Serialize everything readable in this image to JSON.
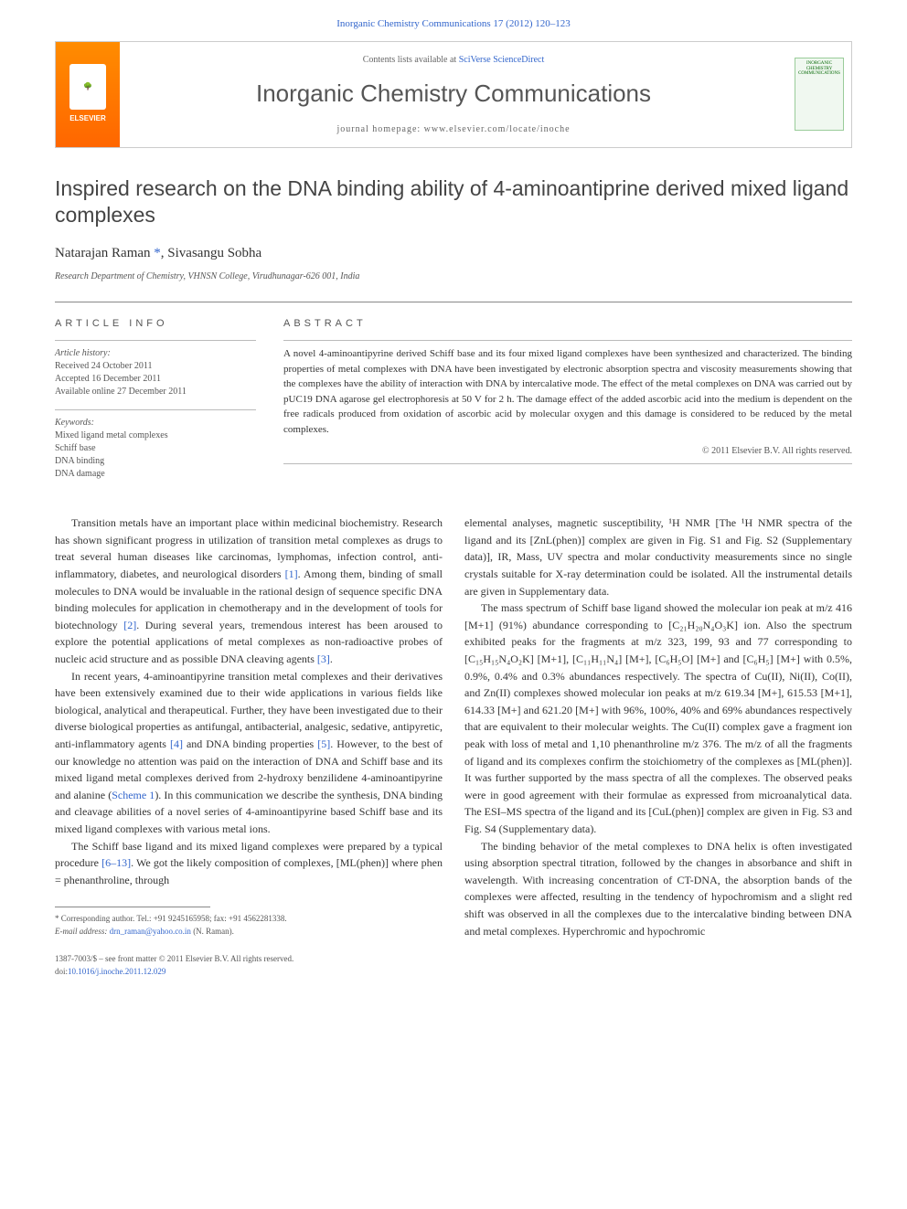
{
  "header": {
    "top_citation": "Inorganic Chemistry Communications 17 (2012) 120–123",
    "contents_prefix": "Contents lists available at ",
    "contents_link": "SciVerse ScienceDirect",
    "journal_title": "Inorganic Chemistry Communications",
    "homepage_label": "journal homepage: www.elsevier.com/locate/inoche",
    "publisher": "ELSEVIER",
    "cover_text": "INORGANIC CHEMISTRY COMMUNICATIONS"
  },
  "article": {
    "title": "Inspired research on the DNA binding ability of 4-aminoantiprine derived mixed ligand complexes",
    "authors_html": "Natarajan Raman *, Sivasangu Sobha",
    "author1": "Natarajan Raman",
    "corr_mark": "*",
    "author2": "Sivasangu Sobha",
    "affiliation": "Research Department of Chemistry, VHNSN College, Virudhunagar-626 001, India"
  },
  "info": {
    "heading": "ARTICLE INFO",
    "history_label": "Article history:",
    "received": "Received 24 October 2011",
    "accepted": "Accepted 16 December 2011",
    "online": "Available online 27 December 2011",
    "keywords_label": "Keywords:",
    "kw1": "Mixed ligand metal complexes",
    "kw2": "Schiff base",
    "kw3": "DNA binding",
    "kw4": "DNA damage"
  },
  "abstract": {
    "heading": "ABSTRACT",
    "text": "A novel 4-aminoantipyrine derived Schiff base and its four mixed ligand complexes have been synthesized and characterized. The binding properties of metal complexes with DNA have been investigated by electronic absorption spectra and viscosity measurements showing that the complexes have the ability of interaction with DNA by intercalative mode. The effect of the metal complexes on DNA was carried out by pUC19 DNA agarose gel electrophoresis at 50 V for 2 h. The damage effect of the added ascorbic acid into the medium is dependent on the free radicals produced from oxidation of ascorbic acid by molecular oxygen and this damage is considered to be reduced by the metal complexes.",
    "copyright": "© 2011 Elsevier B.V. All rights reserved."
  },
  "body": {
    "left": {
      "p1a": "Transition metals have an important place within medicinal biochemistry. Research has shown significant progress in utilization of transition metal complexes as drugs to treat several human diseases like carcinomas, lymphomas, infection control, anti-inflammatory, diabetes, and neurological disorders ",
      "ref1": "[1]",
      "p1b": ". Among them, binding of small molecules to DNA would be invaluable in the rational design of sequence specific DNA binding molecules for application in chemotherapy and in the development of tools for biotechnology ",
      "ref2": "[2]",
      "p1c": ". During several years, tremendous interest has been aroused to explore the potential applications of metal complexes as non-radioactive probes of nucleic acid structure and as possible DNA cleaving agents ",
      "ref3": "[3]",
      "p1d": ".",
      "p2a": "In recent years, 4-aminoantipyrine transition metal complexes and their derivatives have been extensively examined due to their wide applications in various fields like biological, analytical and therapeutical. Further, they have been investigated due to their diverse biological properties as antifungal, antibacterial, analgesic, sedative, antipyretic, anti-inflammatory agents ",
      "ref4": "[4]",
      "p2b": " and DNA binding properties ",
      "ref5": "[5]",
      "p2c": ". However, to the best of our knowledge no attention was paid on the interaction of DNA and Schiff base and its mixed ligand metal complexes derived from 2-hydroxy benzilidene 4-aminoantipyrine and alanine (",
      "scheme": "Scheme 1",
      "p2d": "). In this communication we describe the synthesis, DNA binding and cleavage abilities of a novel series of 4-aminoantipyrine based Schiff base and its mixed ligand complexes with various metal ions.",
      "p3a": "The Schiff base ligand and its mixed ligand complexes were prepared by a typical procedure ",
      "ref6": "[6–13]",
      "p3b": ". We got the likely composition of complexes, [ML(phen)] where phen = phenanthroline, through"
    },
    "right": {
      "p1": "elemental analyses, magnetic susceptibility, ¹H NMR [The ¹H NMR spectra of the ligand and its [ZnL(phen)] complex are given in Fig. S1 and Fig. S2 (Supplementary data)], IR, Mass, UV spectra and molar conductivity measurements since no single crystals suitable for X-ray determination could be isolated. All the instrumental details are given in Supplementary data.",
      "p2": "The mass spectrum of Schiff base ligand showed the molecular ion peak at m/z 416 [M+1] (91%) abundance corresponding to [C₂₁H₂₀N₄O₃K] ion. Also the spectrum exhibited peaks for the fragments at m/z 323, 199, 93 and 77 corresponding to [C₁₅H₁₅N₄O₂K] [M+1], [C₁₁H₁₁N₄] [M+], [C₆H₅O] [M+] and [C₆H₅] [M+] with 0.5%, 0.9%, 0.4% and 0.3% abundances respectively. The spectra of Cu(II), Ni(II), Co(II), and Zn(II) complexes showed molecular ion peaks at m/z 619.34 [M+], 615.53 [M+1], 614.33 [M+] and 621.20 [M+] with 96%, 100%, 40% and 69% abundances respectively that are equivalent to their molecular weights. The Cu(II) complex gave a fragment ion peak with loss of metal and 1,10 phenanthroline m/z 376. The m/z of all the fragments of ligand and its complexes confirm the stoichiometry of the complexes as [ML(phen)]. It was further supported by the mass spectra of all the complexes. The observed peaks were in good agreement with their formulae as expressed from microanalytical data. The ESI–MS spectra of the ligand and its [CuL(phen)] complex are given in Fig. S3 and Fig. S4 (Supplementary data).",
      "p3": "The binding behavior of the metal complexes to DNA helix is often investigated using absorption spectral titration, followed by the changes in absorbance and shift in wavelength. With increasing concentration of CT-DNA, the absorption bands of the complexes were affected, resulting in the tendency of hypochromism and a slight red shift was observed in all the complexes due to the intercalative binding between DNA and metal complexes. Hyperchromic and hypochromic"
    }
  },
  "footnote": {
    "corr": "* Corresponding author. Tel.: +91 9245165958; fax: +91 4562281338.",
    "email_label": "E-mail address:",
    "email": "drn_raman@yahoo.co.in",
    "email_suffix": "(N. Raman)."
  },
  "bottom": {
    "issn": "1387-7003/$ – see front matter © 2011 Elsevier B.V. All rights reserved.",
    "doi_label": "doi:",
    "doi": "10.1016/j.inoche.2011.12.029"
  },
  "colors": {
    "link": "#3366cc",
    "text": "#333333",
    "muted": "#555555",
    "rule": "#888888",
    "elsevier_orange": "#ff6600"
  }
}
